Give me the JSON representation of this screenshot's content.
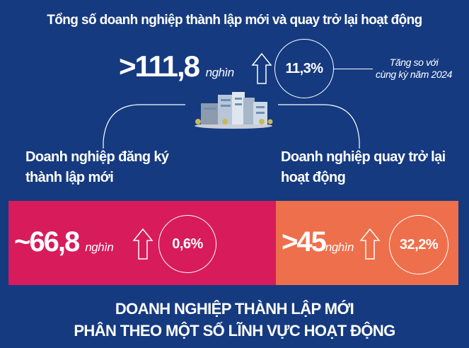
{
  "title": "Tổng số doanh nghiệp thành lập mới và quay trở lại hoạt động",
  "total": {
    "value": ">111,8",
    "unit": "nghìn",
    "change": "11,3%",
    "note_line1": "Tăng so với",
    "note_line2": "cùng kỳ năm 2024"
  },
  "new_enterprises": {
    "label_line1": "Doanh nghiệp đăng ký",
    "label_line2": "thành lập mới",
    "value": "~66,8",
    "unit": "nghìn",
    "change": "0,6%"
  },
  "returning_enterprises": {
    "label_line1": "Doanh nghiệp quay trở lại",
    "label_line2": "hoạt động",
    "value": ">45",
    "unit": "nghìn",
    "change": "32,2%"
  },
  "section_title_line1": "DOANH NGHIỆP THÀNH LẬP MỚI",
  "section_title_line2": "PHÂN THEO MỘT SỐ LĨNH VỰC HOẠT ĐỘNG",
  "colors": {
    "background": "#153a80",
    "new_box": "#d81b5a",
    "returning_box": "#ee6f4b"
  }
}
